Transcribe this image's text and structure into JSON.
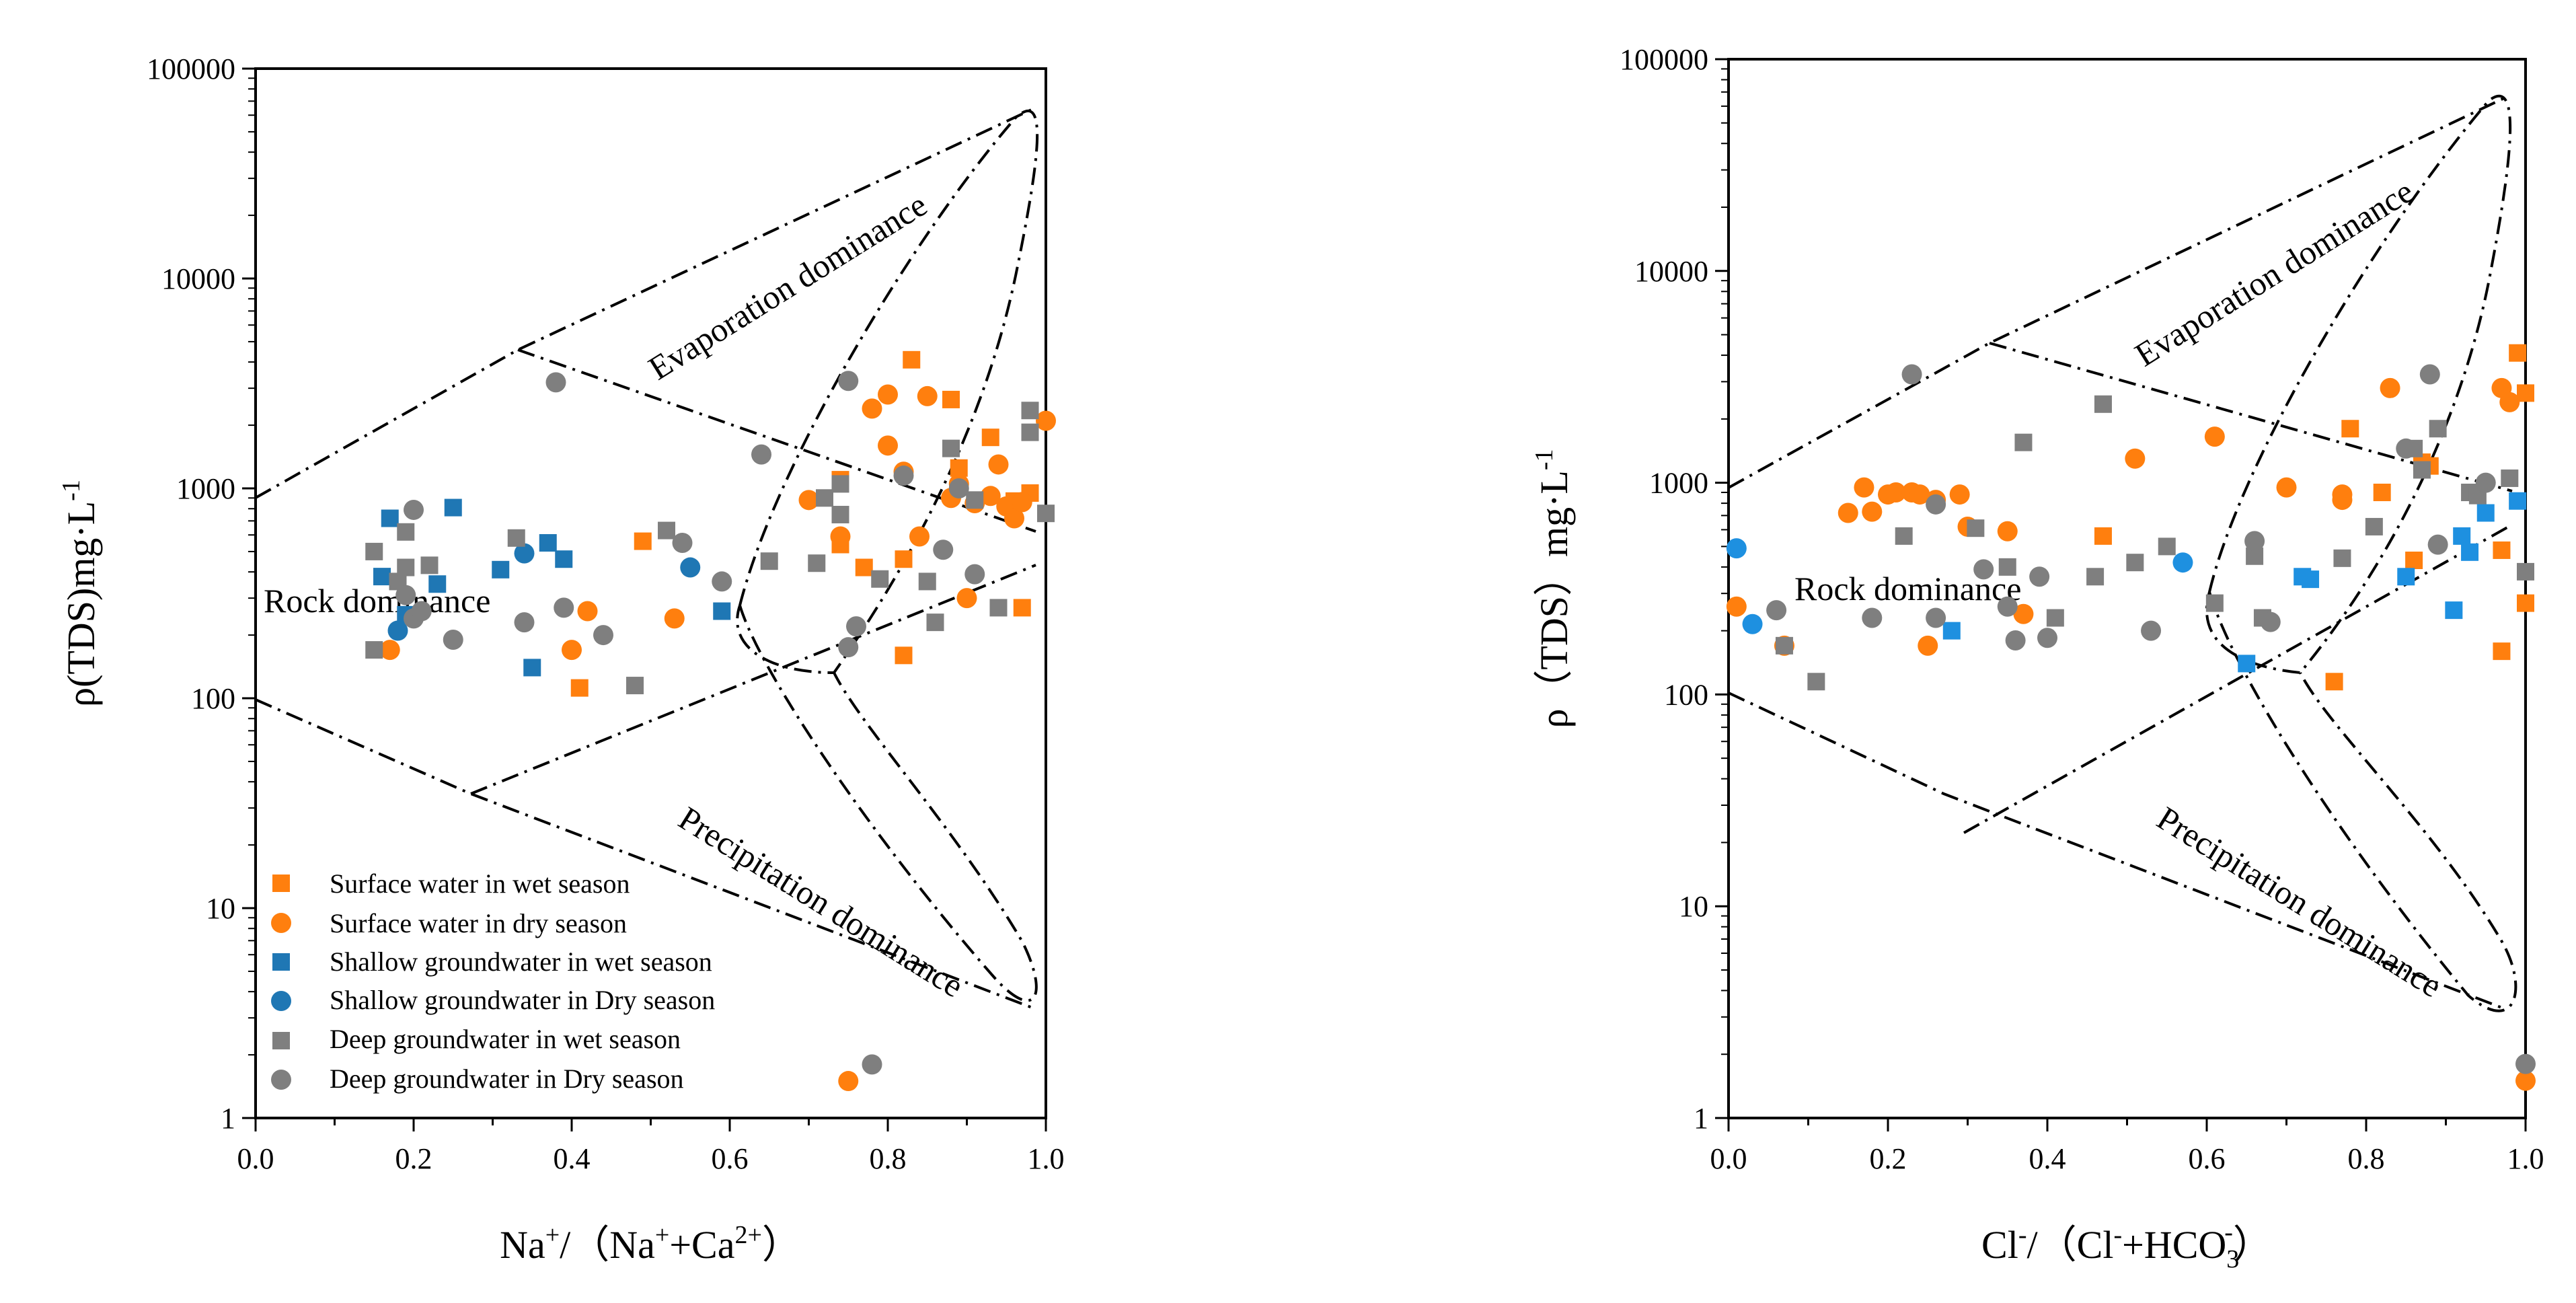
{
  "colors": {
    "surface": "#FF7F0E",
    "shallow": "#1F77B4",
    "shallow_right": "#1E90E0",
    "deep": "#7F7F7F"
  },
  "chart_data": [
    {
      "type": "scatter",
      "xlabel": {
        "main": "Na",
        "sup1": "+",
        "mid": "/（Na",
        "sup2": "+",
        "mid2": "+Ca",
        "sup3": "2+",
        "end": "）"
      },
      "ylabel": {
        "main": "ρ(TDS)mg·L",
        "sup": "-1"
      },
      "xlim": [
        0,
        1
      ],
      "ylim": [
        1,
        100000
      ],
      "yscale": "log",
      "xticks": [
        "0.0",
        "0.2",
        "0.4",
        "0.6",
        "0.8",
        "1.0"
      ],
      "yticks": [
        "1",
        "10",
        "100",
        "1000",
        "10000",
        "100000"
      ],
      "regions": {
        "evaporation": "Evaporation dominance",
        "rock": "Rock dominance",
        "precipitation": "Precipitation dominance"
      },
      "legend": {
        "position": "bottom-left",
        "items": [
          "Surface water in wet season",
          "Surface water in dry season",
          "Shallow groundwater in wet season",
          "Shallow groundwater in Dry season",
          "Deep groundwater in wet season",
          "Deep groundwater in Dry season"
        ]
      },
      "series": [
        {
          "name": "Surface water in wet season",
          "color_key": "surface",
          "marker": "square",
          "points": [
            [
              0.41,
              112
            ],
            [
              0.49,
              560
            ],
            [
              0.74,
              1100
            ],
            [
              0.77,
              420
            ],
            [
              0.82,
              460
            ],
            [
              0.82,
              160
            ],
            [
              0.83,
              4100
            ],
            [
              0.88,
              2650
            ],
            [
              0.89,
              1250
            ],
            [
              0.93,
              1750
            ],
            [
              0.96,
              870
            ],
            [
              0.97,
              270
            ],
            [
              0.98,
              950
            ],
            [
              0.74,
              540
            ]
          ]
        },
        {
          "name": "Surface water in dry season",
          "color_key": "surface",
          "marker": "circle",
          "points": [
            [
              0.17,
              170
            ],
            [
              0.4,
              170
            ],
            [
              0.42,
              260
            ],
            [
              0.53,
              240
            ],
            [
              0.7,
              880
            ],
            [
              0.74,
              590
            ],
            [
              0.75,
              1.5
            ],
            [
              0.78,
              2400
            ],
            [
              0.8,
              1600
            ],
            [
              0.8,
              2800
            ],
            [
              0.82,
              1200
            ],
            [
              0.84,
              590
            ],
            [
              0.85,
              2750
            ],
            [
              0.88,
              900
            ],
            [
              0.89,
              1050
            ],
            [
              0.9,
              300
            ],
            [
              0.91,
              850
            ],
            [
              0.93,
              920
            ],
            [
              0.94,
              1300
            ],
            [
              0.95,
              820
            ],
            [
              0.96,
              720
            ],
            [
              0.97,
              860
            ],
            [
              1.0,
              2100
            ]
          ]
        },
        {
          "name": "Shallow groundwater in wet season",
          "color_key": "shallow",
          "marker": "square",
          "points": [
            [
              0.16,
              380
            ],
            [
              0.17,
              720
            ],
            [
              0.19,
              250
            ],
            [
              0.23,
              350
            ],
            [
              0.25,
              810
            ],
            [
              0.31,
              410
            ],
            [
              0.35,
              140
            ],
            [
              0.37,
              550
            ],
            [
              0.39,
              460
            ],
            [
              0.59,
              260
            ]
          ]
        },
        {
          "name": "Shallow groundwater in Dry season",
          "color_key": "shallow",
          "marker": "circle",
          "points": [
            [
              0.18,
              210
            ],
            [
              0.34,
              490
            ],
            [
              0.55,
              420
            ]
          ]
        },
        {
          "name": "Deep groundwater in wet season",
          "color_key": "deep",
          "marker": "square",
          "points": [
            [
              0.15,
              500
            ],
            [
              0.15,
              170
            ],
            [
              0.18,
              360
            ],
            [
              0.19,
              620
            ],
            [
              0.19,
              420
            ],
            [
              0.22,
              430
            ],
            [
              0.33,
              580
            ],
            [
              0.48,
              115
            ],
            [
              0.52,
              630
            ],
            [
              0.65,
              450
            ],
            [
              0.71,
              440
            ],
            [
              0.72,
              900
            ],
            [
              0.74,
              750
            ],
            [
              0.74,
              1050
            ],
            [
              0.79,
              370
            ],
            [
              0.85,
              360
            ],
            [
              0.86,
              230
            ],
            [
              0.88,
              1550
            ],
            [
              0.91,
              880
            ],
            [
              0.94,
              270
            ],
            [
              0.98,
              2350
            ],
            [
              0.98,
              1850
            ],
            [
              1.0,
              760
            ]
          ]
        },
        {
          "name": "Deep groundwater in Dry season",
          "color_key": "deep",
          "marker": "circle",
          "points": [
            [
              0.19,
              310
            ],
            [
              0.2,
              790
            ],
            [
              0.2,
              240
            ],
            [
              0.21,
              260
            ],
            [
              0.25,
              190
            ],
            [
              0.34,
              230
            ],
            [
              0.38,
              3200
            ],
            [
              0.39,
              270
            ],
            [
              0.44,
              200
            ],
            [
              0.54,
              550
            ],
            [
              0.59,
              360
            ],
            [
              0.64,
              1450
            ],
            [
              0.75,
              3250
            ],
            [
              0.75,
              175
            ],
            [
              0.76,
              220
            ],
            [
              0.78,
              1.8
            ],
            [
              0.82,
              1150
            ],
            [
              0.87,
              510
            ],
            [
              0.89,
              1000
            ],
            [
              0.91,
              390
            ]
          ]
        }
      ]
    },
    {
      "type": "scatter",
      "xlabel": {
        "main": "Cl",
        "sup1": "-",
        "mid": "/（Cl",
        "sup2": "-",
        "mid2": "+HCO",
        "sub3": "3",
        "sup3": "-",
        "end": "）"
      },
      "ylabel": {
        "main": "ρ（TDS）mg·L",
        "sup": "-1"
      },
      "xlim": [
        0,
        1
      ],
      "ylim": [
        1,
        100000
      ],
      "yscale": "log",
      "xticks": [
        "0.0",
        "0.2",
        "0.4",
        "0.6",
        "0.8",
        "1.0"
      ],
      "yticks": [
        "1",
        "10",
        "100",
        "1000",
        "10000",
        "100000"
      ],
      "regions": {
        "evaporation": "Evaporation dominance",
        "rock": "Rock dominance",
        "precipitation": "Precipitation dominance"
      },
      "series": [
        {
          "name": "Surface water in wet season",
          "color_key": "surface",
          "marker": "square",
          "points": [
            [
              0.47,
              560
            ],
            [
              0.76,
              115
            ],
            [
              0.78,
              1800
            ],
            [
              0.82,
              900
            ],
            [
              0.86,
              430
            ],
            [
              0.87,
              1250
            ],
            [
              0.88,
              1200
            ],
            [
              0.97,
              160
            ],
            [
              0.97,
              480
            ],
            [
              0.99,
              4100
            ],
            [
              1.0,
              2650
            ],
            [
              1.0,
              270
            ]
          ]
        },
        {
          "name": "Surface water in dry season",
          "color_key": "surface",
          "marker": "circle",
          "points": [
            [
              0.01,
              260
            ],
            [
              0.07,
              170
            ],
            [
              0.15,
              720
            ],
            [
              0.17,
              950
            ],
            [
              0.18,
              730
            ],
            [
              0.2,
              880
            ],
            [
              0.21,
              900
            ],
            [
              0.23,
              900
            ],
            [
              0.24,
              880
            ],
            [
              0.25,
              170
            ],
            [
              0.26,
              830
            ],
            [
              0.29,
              880
            ],
            [
              0.3,
              620
            ],
            [
              0.35,
              590
            ],
            [
              0.37,
              240
            ],
            [
              0.51,
              1300
            ],
            [
              0.61,
              1650
            ],
            [
              0.7,
              950
            ],
            [
              0.77,
              830
            ],
            [
              0.77,
              880
            ],
            [
              0.83,
              2800
            ],
            [
              0.97,
              2800
            ],
            [
              0.98,
              2400
            ],
            [
              1.0,
              1.5
            ]
          ]
        },
        {
          "name": "Shallow groundwater in wet season",
          "color_key": "shallow_right",
          "marker": "square",
          "points": [
            [
              0.28,
              200
            ],
            [
              0.65,
              140
            ],
            [
              0.72,
              360
            ],
            [
              0.73,
              350
            ],
            [
              0.85,
              360
            ],
            [
              0.91,
              250
            ],
            [
              0.92,
              560
            ],
            [
              0.93,
              470
            ],
            [
              0.95,
              720
            ],
            [
              0.99,
              820
            ]
          ]
        },
        {
          "name": "Shallow groundwater in Dry season",
          "color_key": "shallow_right",
          "marker": "circle",
          "points": [
            [
              0.01,
              490
            ],
            [
              0.03,
              215
            ],
            [
              0.57,
              420
            ]
          ]
        },
        {
          "name": "Deep groundwater in wet season",
          "color_key": "deep",
          "marker": "square",
          "points": [
            [
              0.07,
              170
            ],
            [
              0.11,
              115
            ],
            [
              0.22,
              560
            ],
            [
              0.31,
              610
            ],
            [
              0.35,
              400
            ],
            [
              0.37,
              1550
            ],
            [
              0.41,
              230
            ],
            [
              0.46,
              360
            ],
            [
              0.47,
              2350
            ],
            [
              0.51,
              420
            ],
            [
              0.55,
              500
            ],
            [
              0.61,
              270
            ],
            [
              0.66,
              450
            ],
            [
              0.67,
              230
            ],
            [
              0.77,
              440
            ],
            [
              0.81,
              620
            ],
            [
              0.86,
              1450
            ],
            [
              0.87,
              1150
            ],
            [
              0.89,
              1800
            ],
            [
              0.93,
              900
            ],
            [
              0.94,
              870
            ],
            [
              0.98,
              1050
            ],
            [
              1.0,
              380
            ]
          ]
        },
        {
          "name": "Deep groundwater in Dry season",
          "color_key": "deep",
          "marker": "circle",
          "points": [
            [
              0.06,
              250
            ],
            [
              0.18,
              230
            ],
            [
              0.23,
              3250
            ],
            [
              0.26,
              790
            ],
            [
              0.26,
              230
            ],
            [
              0.32,
              390
            ],
            [
              0.35,
              260
            ],
            [
              0.36,
              180
            ],
            [
              0.39,
              360
            ],
            [
              0.4,
              185
            ],
            [
              0.53,
              200
            ],
            [
              0.66,
              530
            ],
            [
              0.68,
              220
            ],
            [
              0.85,
              1450
            ],
            [
              0.88,
              3250
            ],
            [
              0.89,
              510
            ],
            [
              0.95,
              1000
            ],
            [
              1.0,
              1.8
            ]
          ]
        }
      ]
    }
  ]
}
